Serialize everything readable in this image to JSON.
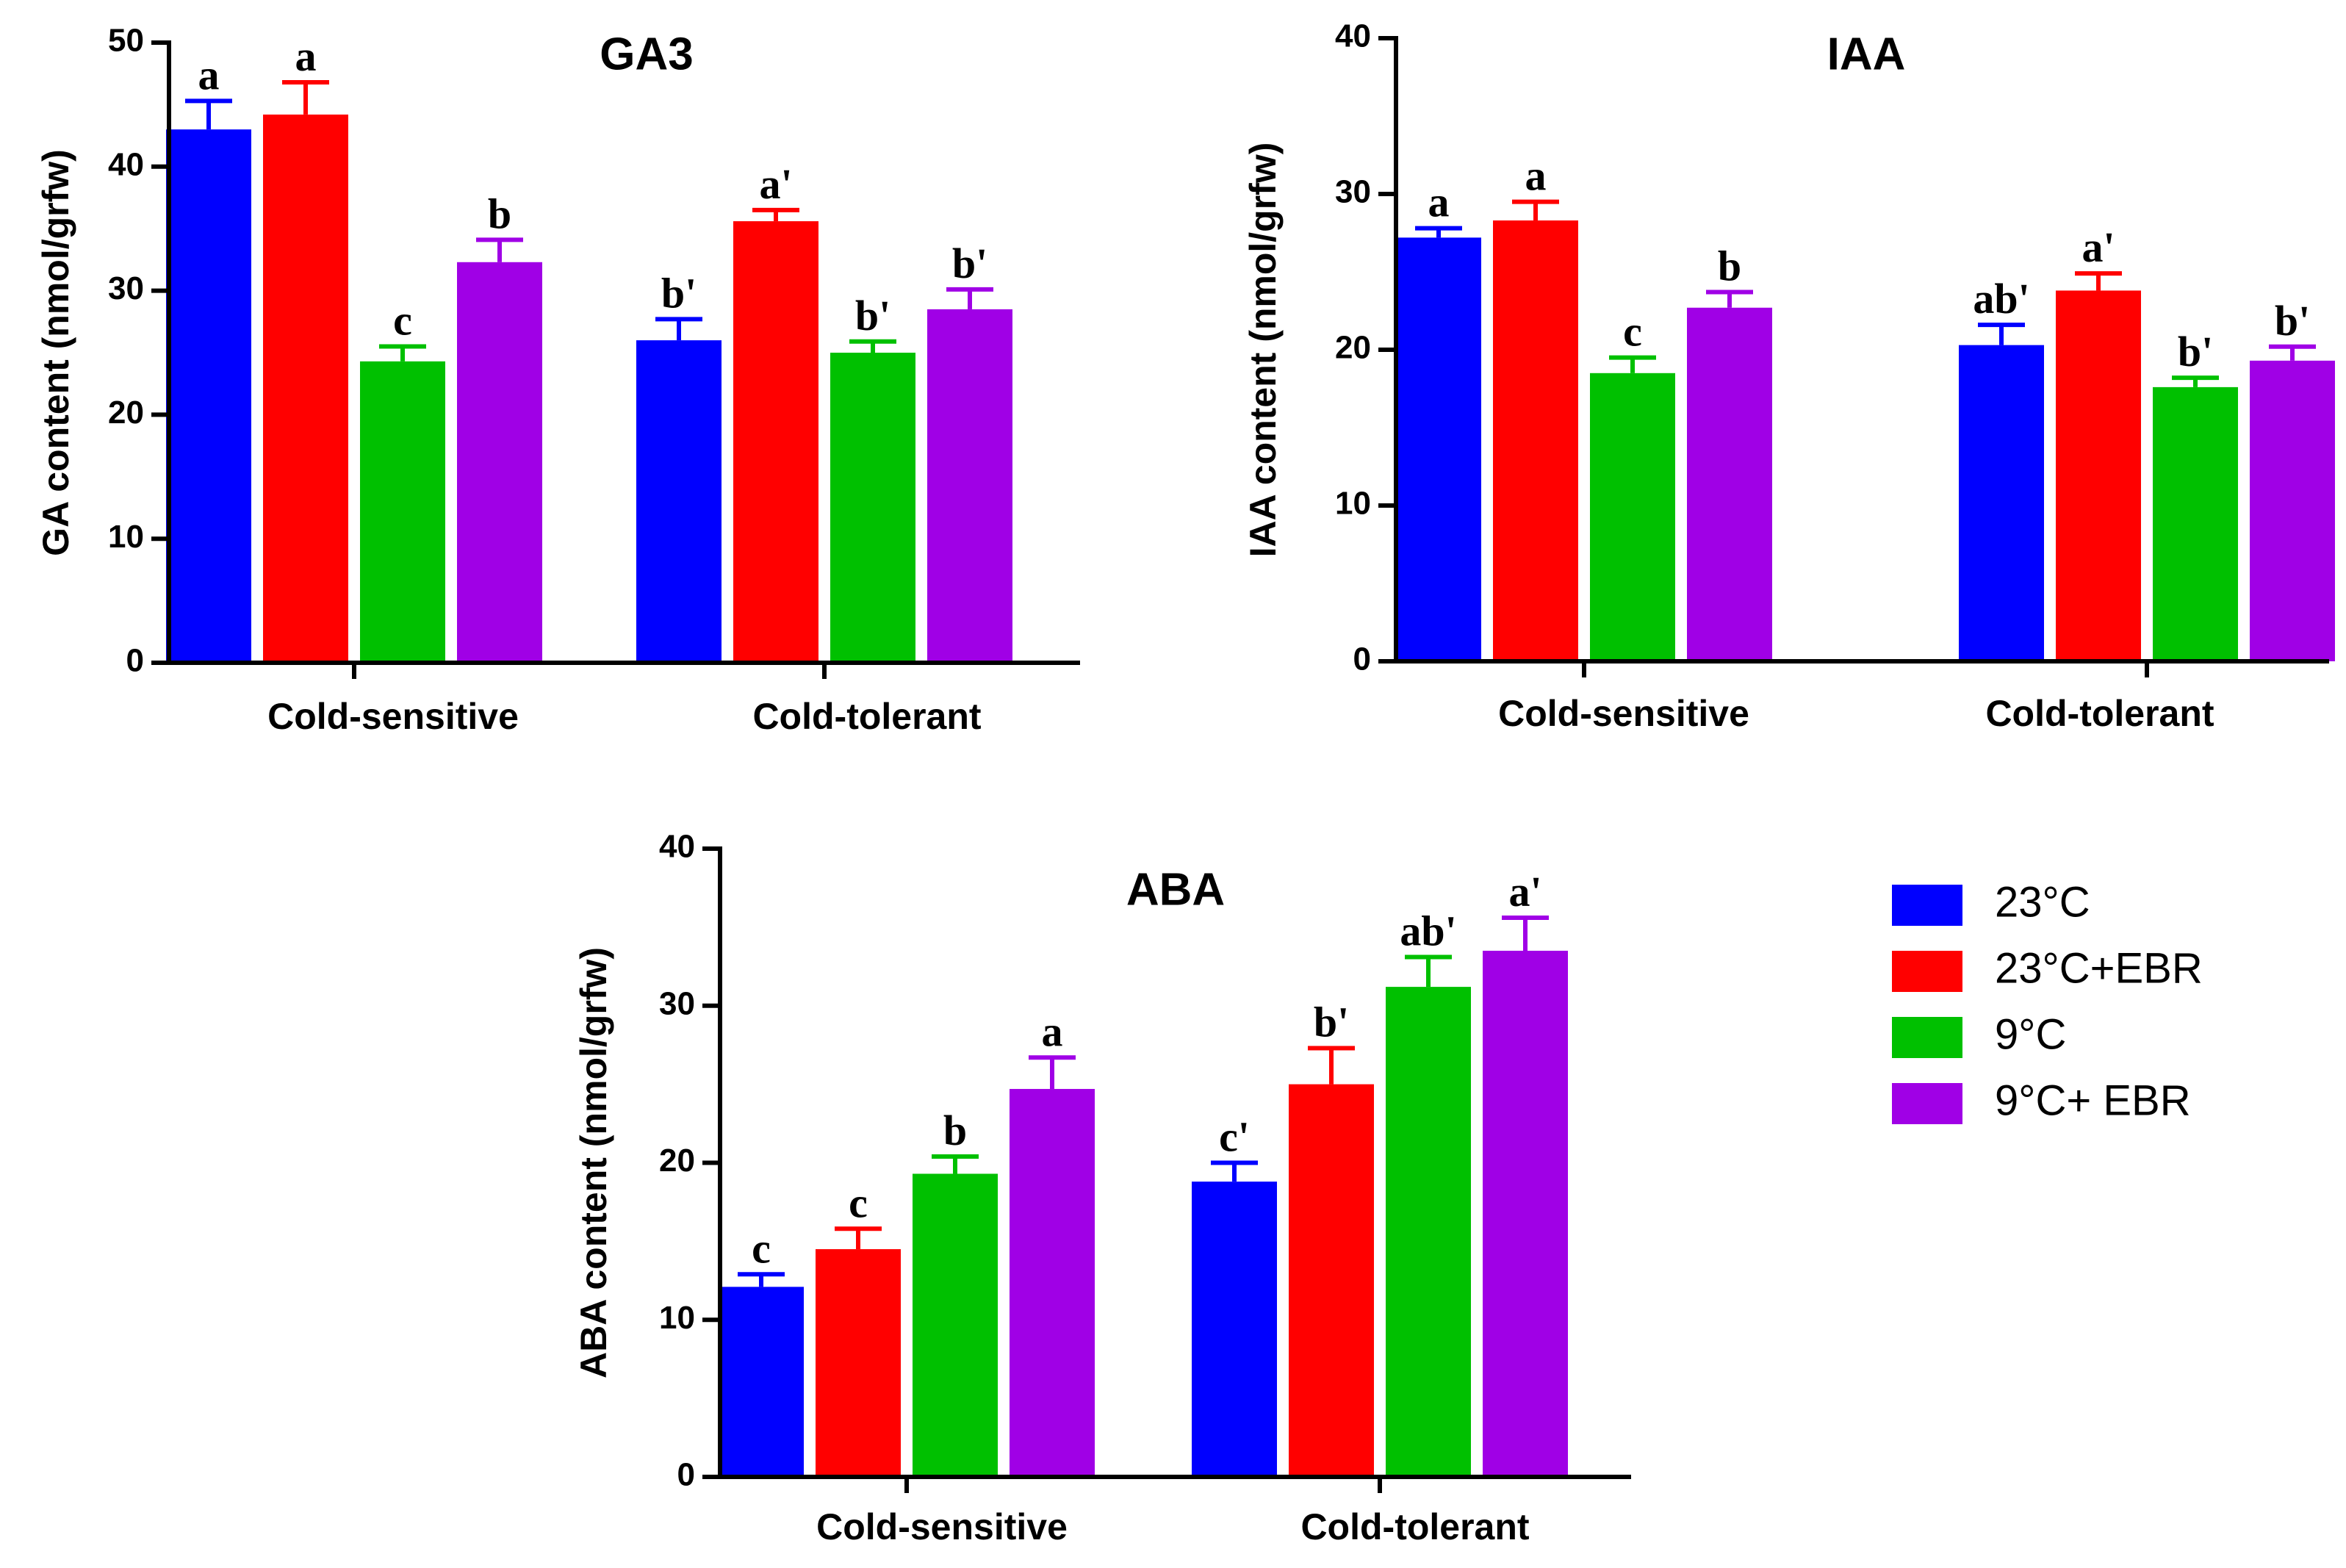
{
  "colors": {
    "23C": "#0000ff",
    "23C_EBR": "#ff0000",
    "9C": "#00c000",
    "9C_EBR": "#a000e6"
  },
  "legend": {
    "entries": [
      {
        "label": "23°C",
        "color": "#0000ff"
      },
      {
        "label": "23°C+EBR",
        "color": "#ff0000"
      },
      {
        "label": "9°C",
        "color": "#00c000"
      },
      {
        "label": "9°C+ EBR",
        "color": "#a000e6"
      }
    ]
  },
  "chart_data": [
    {
      "type": "bar",
      "title": "GA3",
      "xlabel": "",
      "ylabel": "GA content (nmol/grfw)",
      "ylim": [
        0,
        50
      ],
      "yticks": [
        0,
        10,
        20,
        30,
        40,
        50
      ],
      "categories": [
        "Cold-sensitive",
        "Cold-tolerant"
      ],
      "series": [
        {
          "name": "23°C",
          "values": [
            43.0,
            26.0
          ],
          "errors": [
            2.3,
            1.7
          ],
          "labels": [
            "a",
            "b'"
          ]
        },
        {
          "name": "23°C+EBR",
          "values": [
            44.2,
            35.6
          ],
          "errors": [
            2.6,
            0.9
          ],
          "labels": [
            "a",
            "a'"
          ]
        },
        {
          "name": "9°C",
          "values": [
            24.3,
            25.0
          ],
          "errors": [
            1.2,
            0.9
          ],
          "labels": [
            "c",
            "b'"
          ]
        },
        {
          "name": "9°C+ EBR",
          "values": [
            32.3,
            28.5
          ],
          "errors": [
            1.8,
            1.6
          ],
          "labels": [
            "b",
            "b'"
          ]
        }
      ]
    },
    {
      "type": "bar",
      "title": "IAA",
      "xlabel": "",
      "ylabel": "IAA content (nmol/grfw)",
      "ylim": [
        0,
        40
      ],
      "yticks": [
        0,
        10,
        20,
        30,
        40
      ],
      "categories": [
        "Cold-sensitive",
        "Cold-tolerant"
      ],
      "series": [
        {
          "name": "23°C",
          "values": [
            27.2,
            20.3
          ],
          "errors": [
            0.6,
            1.3
          ],
          "labels": [
            "a",
            "ab'"
          ]
        },
        {
          "name": "23°C+EBR",
          "values": [
            28.3,
            23.8
          ],
          "errors": [
            1.2,
            1.1
          ],
          "labels": [
            "a",
            "a'"
          ]
        },
        {
          "name": "9°C",
          "values": [
            18.5,
            17.6
          ],
          "errors": [
            1.0,
            0.6
          ],
          "labels": [
            "c",
            "b'"
          ]
        },
        {
          "name": "9°C+ EBR",
          "values": [
            22.7,
            19.3
          ],
          "errors": [
            1.0,
            0.9
          ],
          "labels": [
            "b",
            "b'"
          ]
        }
      ]
    },
    {
      "type": "bar",
      "title": "ABA",
      "xlabel": "",
      "ylabel": "ABA content (nmol/grfw)",
      "ylim": [
        0,
        40
      ],
      "yticks": [
        0,
        10,
        20,
        30,
        40
      ],
      "categories": [
        "Cold-sensitive",
        "Cold-tolerant"
      ],
      "series": [
        {
          "name": "23°C",
          "values": [
            12.1,
            18.8
          ],
          "errors": [
            0.8,
            1.2
          ],
          "labels": [
            "c",
            "c'"
          ]
        },
        {
          "name": "23°C+EBR",
          "values": [
            14.5,
            25.0
          ],
          "errors": [
            1.3,
            2.3
          ],
          "labels": [
            "c",
            "b'"
          ]
        },
        {
          "name": "9°C",
          "values": [
            19.3,
            31.2
          ],
          "errors": [
            1.1,
            1.9
          ],
          "labels": [
            "b",
            "ab'"
          ]
        },
        {
          "name": "9°C+ EBR",
          "values": [
            24.7,
            33.5
          ],
          "errors": [
            2.0,
            2.1
          ],
          "labels": [
            "a",
            "a'"
          ]
        }
      ]
    }
  ]
}
